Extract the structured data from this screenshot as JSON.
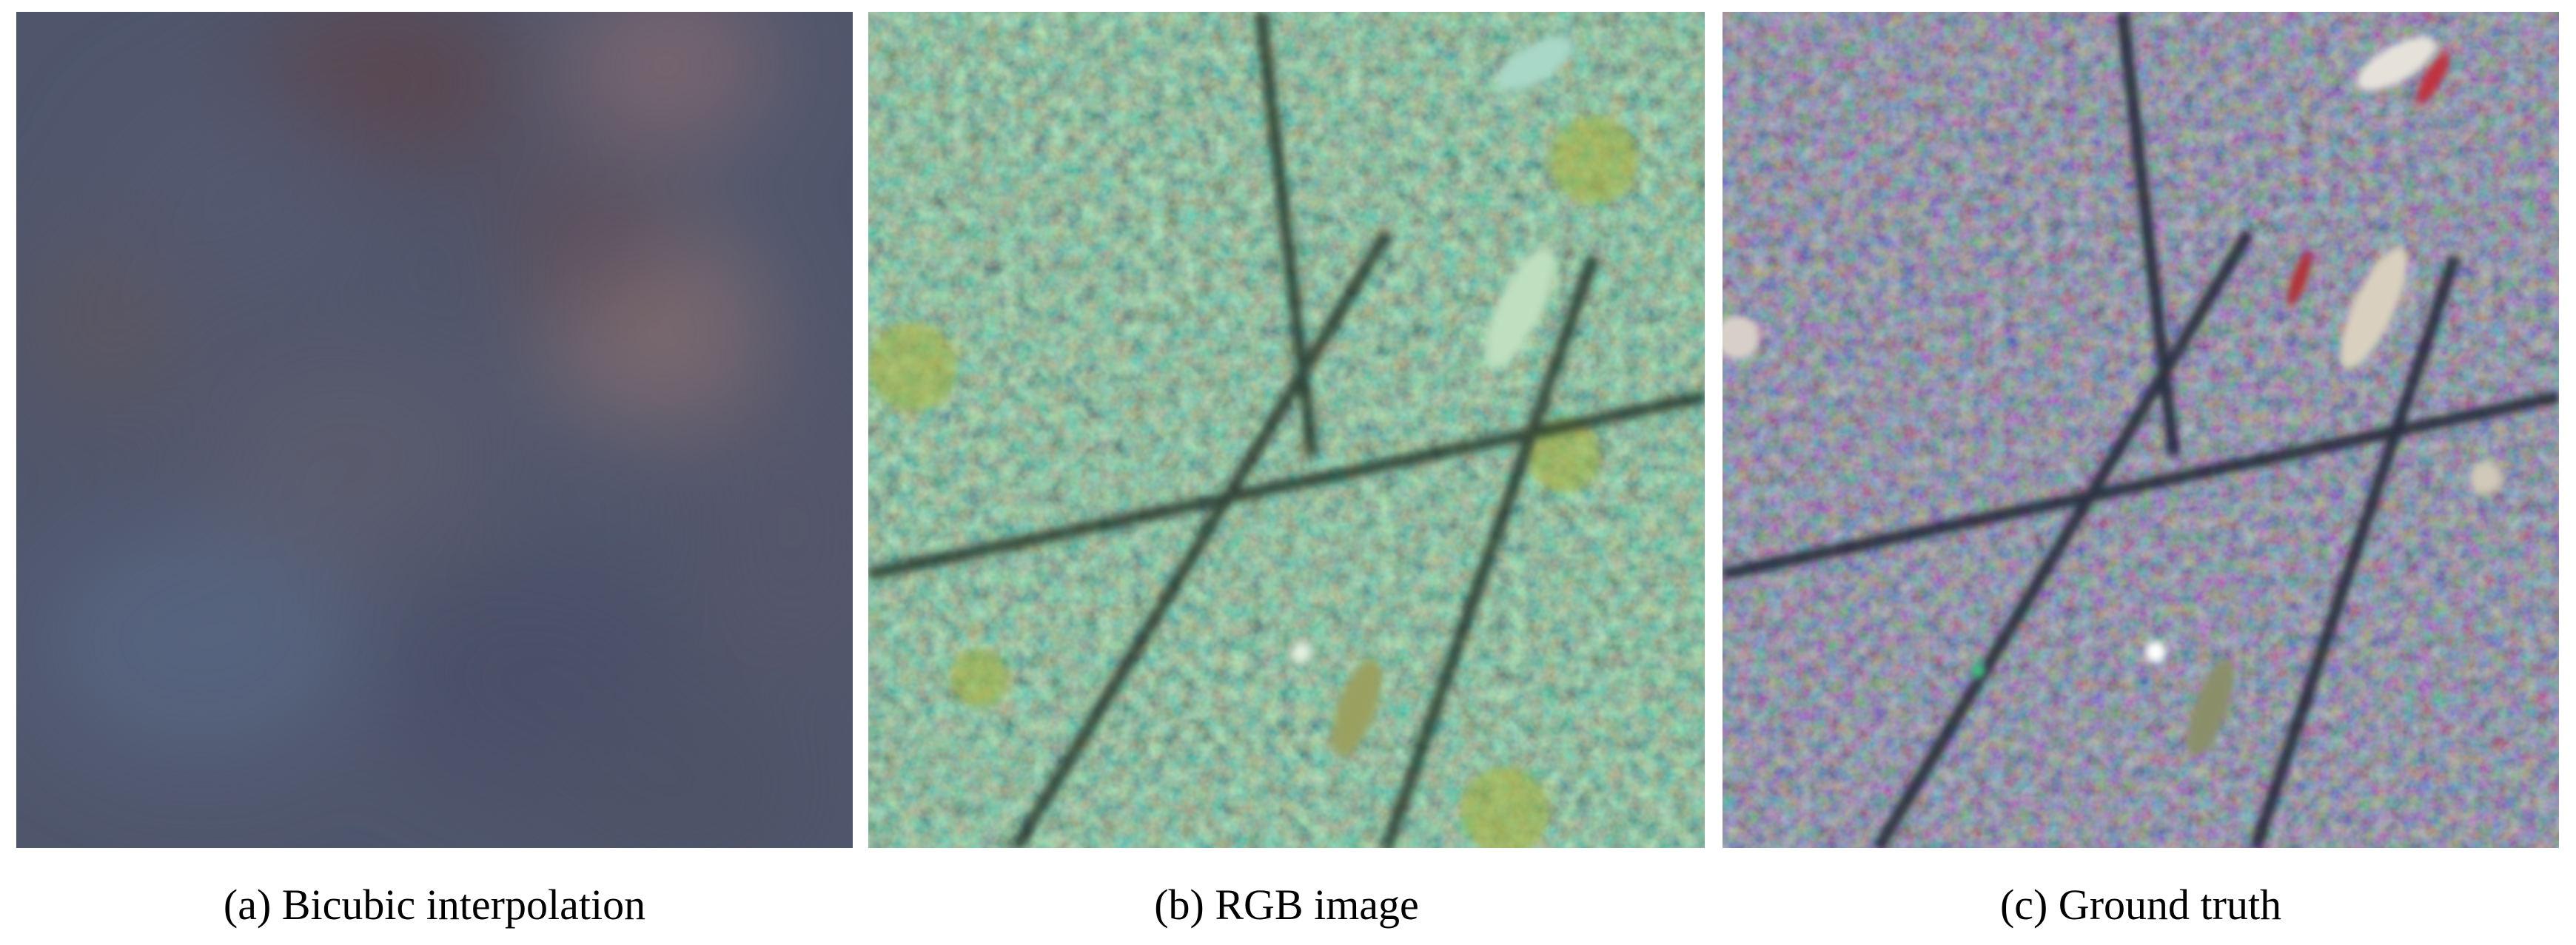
{
  "panels": [
    {
      "id": "a",
      "caption": "(a) Bicubic interpolation"
    },
    {
      "id": "b",
      "caption": "(b) RGB image"
    },
    {
      "id": "c",
      "caption": "(c) Ground truth"
    }
  ],
  "colors": {
    "bicubic_base": "#4f566c",
    "rgb_base": "#2f4a3c",
    "gt_base": "#3a3f55"
  }
}
